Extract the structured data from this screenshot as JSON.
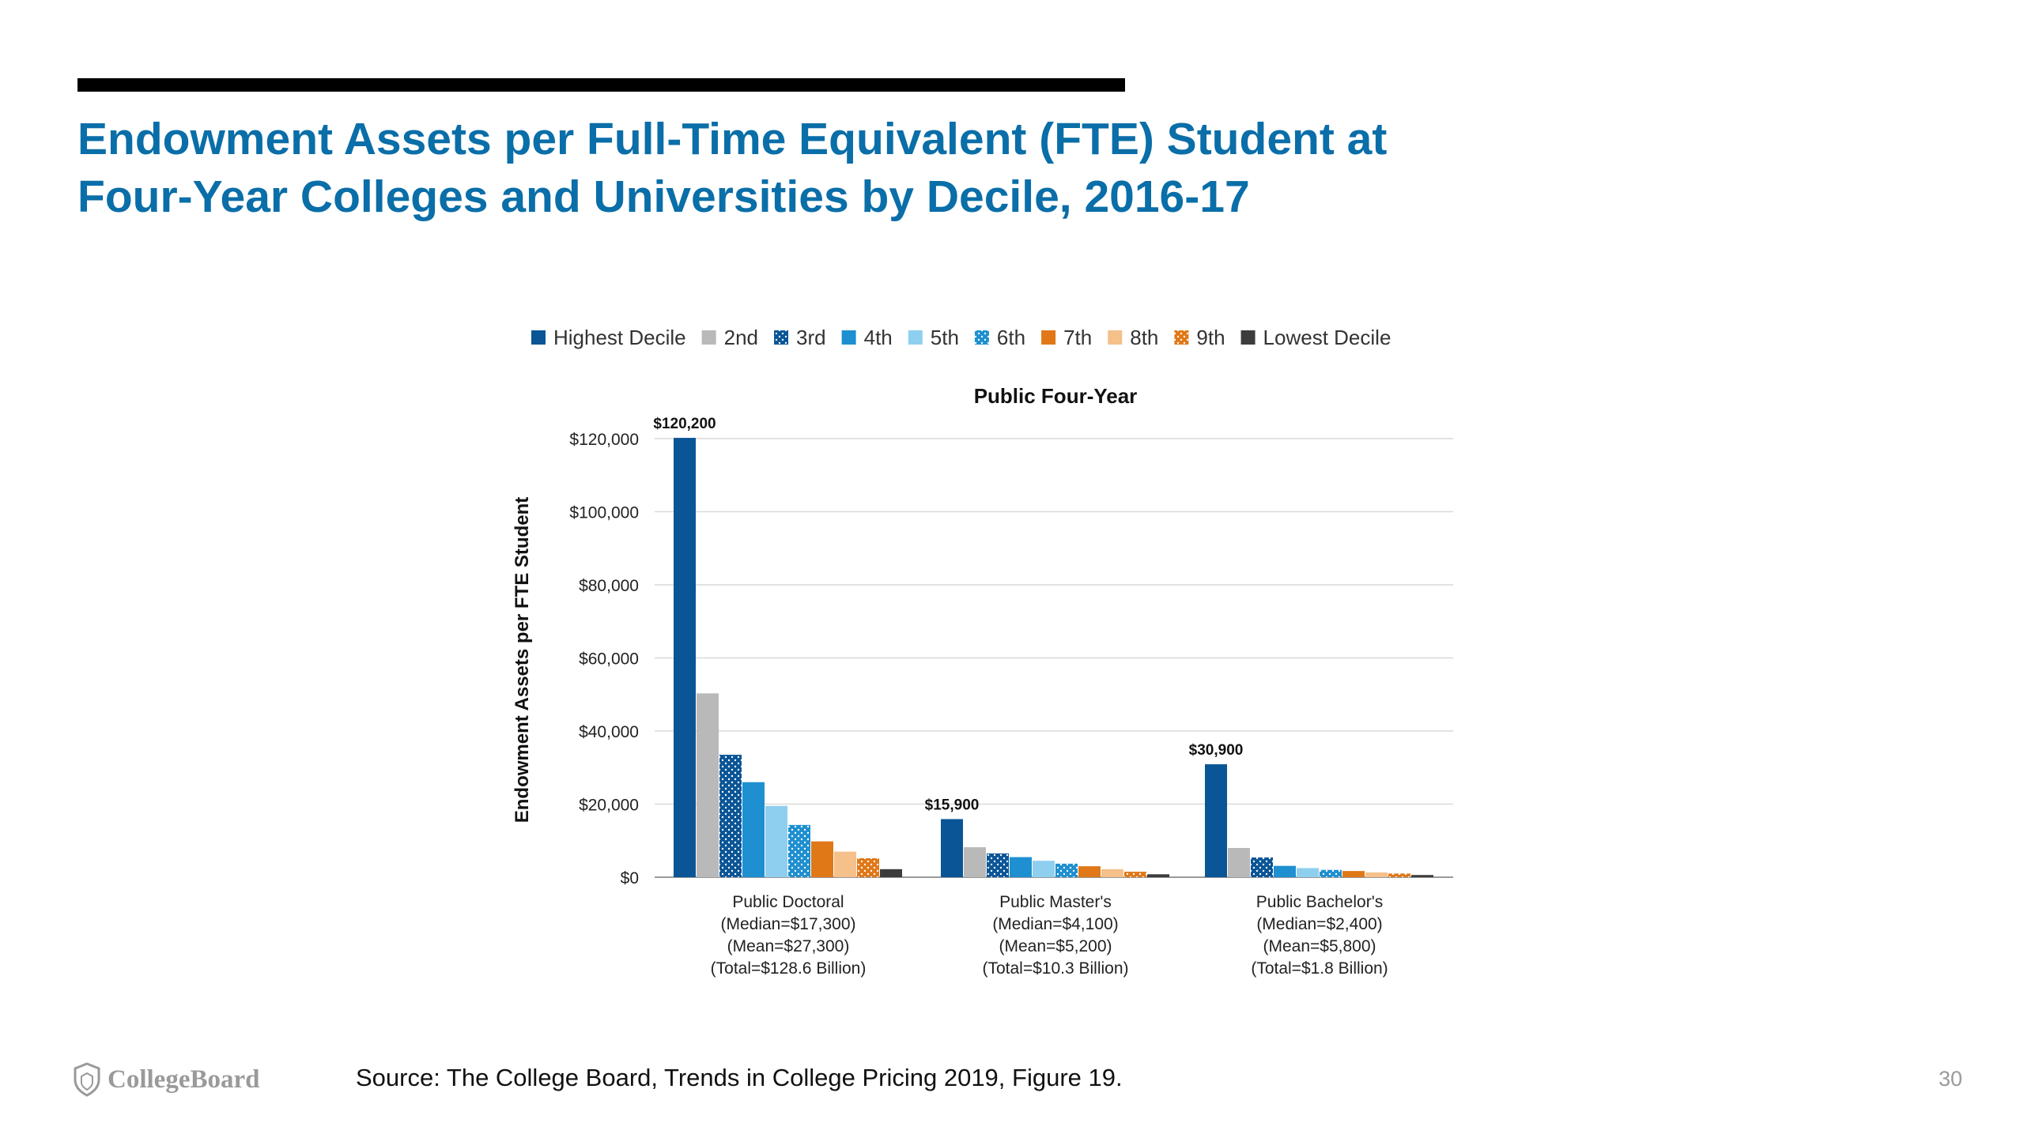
{
  "slide": {
    "title_line1": "Endowment Assets per Full-Time Equivalent (FTE) Student at",
    "title_line2": "Four-Year Colleges and Universities by Decile, 2016-17",
    "source": "Source: The College Board, Trends in College Pricing 2019, Figure 19.",
    "logo": "CollegeBoard",
    "page_number": "30",
    "title_color": "#0a6ea8"
  },
  "chart_data": {
    "type": "bar",
    "title": "Public Four-Year",
    "ylabel": "Endowment Assets per FTE Student",
    "xlabel": "",
    "ylim": [
      0,
      120000
    ],
    "yticks": [
      0,
      20000,
      40000,
      60000,
      80000,
      100000,
      120000
    ],
    "ytick_labels": [
      "$0",
      "$20,000",
      "$40,000",
      "$60,000",
      "$80,000",
      "$100,000",
      "$120,000"
    ],
    "grid": true,
    "legend_position": "top",
    "categories": [
      [
        "Public Doctoral",
        "(Median=$17,300)",
        "(Mean=$27,300)",
        "(Total=$128.6 Billion)"
      ],
      [
        "Public Master's",
        "(Median=$4,100)",
        "(Mean=$5,200)",
        "(Total=$10.3 Billion)"
      ],
      [
        "Public Bachelor's",
        "(Median=$2,400)",
        "(Mean=$5,800)",
        "(Total=$1.8 Billion)"
      ]
    ],
    "series": [
      {
        "name": "Highest Decile",
        "color": "#0a5596",
        "pattern": "solid",
        "values": [
          120200,
          15900,
          30900
        ]
      },
      {
        "name": "2nd",
        "color": "#b9b9b9",
        "pattern": "solid",
        "values": [
          50300,
          8200,
          8000
        ]
      },
      {
        "name": "3rd",
        "color": "#0a5596",
        "pattern": "dots",
        "values": [
          33500,
          6500,
          5400
        ]
      },
      {
        "name": "4th",
        "color": "#1e8fd0",
        "pattern": "solid",
        "values": [
          26000,
          5500,
          3100
        ]
      },
      {
        "name": "5th",
        "color": "#8ecff0",
        "pattern": "solid",
        "values": [
          19500,
          4500,
          2500
        ]
      },
      {
        "name": "6th",
        "color": "#1e8fd0",
        "pattern": "dots",
        "values": [
          14300,
          3700,
          2000
        ]
      },
      {
        "name": "7th",
        "color": "#e07818",
        "pattern": "solid",
        "values": [
          9800,
          3000,
          1700
        ]
      },
      {
        "name": "8th",
        "color": "#f5c08a",
        "pattern": "solid",
        "values": [
          7000,
          2200,
          1300
        ]
      },
      {
        "name": "9th",
        "color": "#e07818",
        "pattern": "dots",
        "values": [
          5200,
          1500,
          1000
        ]
      },
      {
        "name": "Lowest Decile",
        "color": "#3c3c3c",
        "pattern": "solid",
        "values": [
          2200,
          800,
          600
        ]
      }
    ],
    "data_labels": [
      {
        "series": 0,
        "category": 0,
        "text": "$120,200"
      },
      {
        "series": 0,
        "category": 1,
        "text": "$15,900"
      },
      {
        "series": 0,
        "category": 2,
        "text": "$30,900"
      }
    ]
  }
}
